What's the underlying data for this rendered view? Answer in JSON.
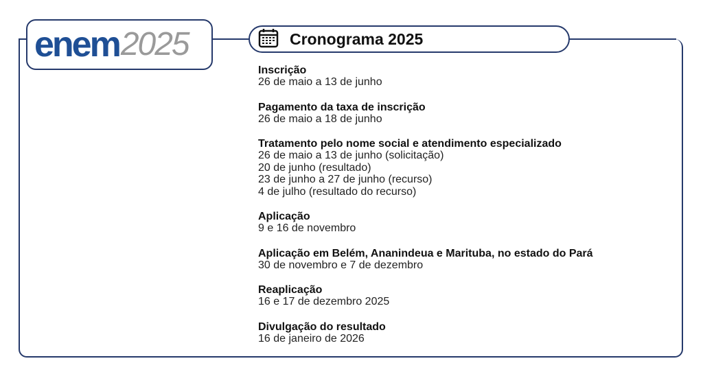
{
  "logo": {
    "brand": "enem",
    "year": "2025"
  },
  "header": {
    "title": "Cronograma 2025",
    "icon": "calendar-icon"
  },
  "colors": {
    "frame": "#25396b",
    "brand": "#1f4f95",
    "year": "#9a9a9a"
  },
  "items": [
    {
      "title": "Inscrição",
      "lines": [
        "26 de maio a 13 de junho"
      ]
    },
    {
      "title": "Pagamento da taxa de inscrição",
      "lines": [
        "26 de maio a 18 de junho"
      ]
    },
    {
      "title": "Tratamento pelo nome social e atendimento especializado",
      "lines": [
        "26 de maio a 13 de junho (solicitação)",
        "20 de junho (resultado)",
        "23 de junho a 27 de junho (recurso)",
        "4 de julho (resultado do recurso)"
      ]
    },
    {
      "title": "Aplicação",
      "lines": [
        "9 e 16 de novembro"
      ]
    },
    {
      "title": "Aplicação em Belém, Ananindeua e Marituba, no estado do Pará",
      "lines": [
        "30 de novembro e 7 de dezembro"
      ]
    },
    {
      "title": "Reaplicação",
      "lines": [
        "16 e 17 de dezembro 2025"
      ]
    },
    {
      "title": "Divulgação do resultado",
      "lines": [
        "16 de janeiro de 2026"
      ]
    }
  ]
}
